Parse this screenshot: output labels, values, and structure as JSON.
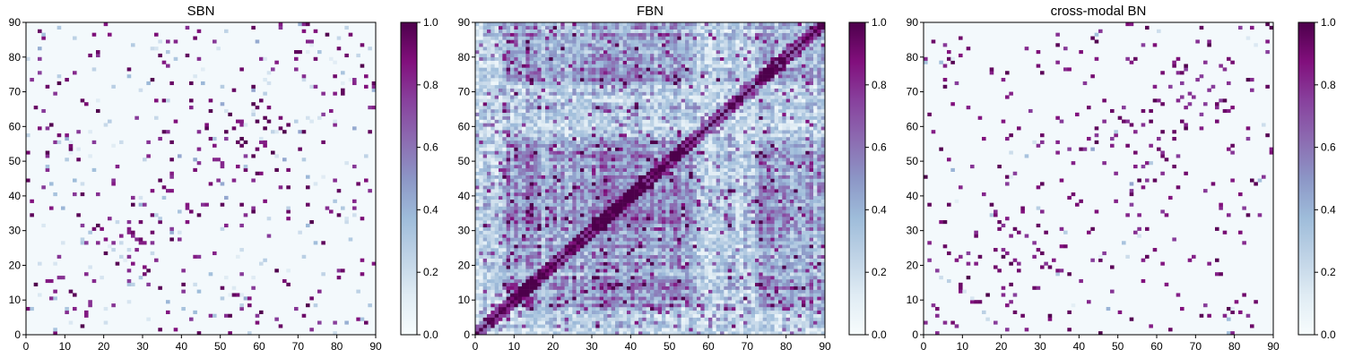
{
  "chart_data": [
    {
      "type": "heatmap",
      "title": "SBN",
      "x_range": [
        0,
        90
      ],
      "y_range": [
        0,
        90
      ],
      "x_ticks": [
        "0",
        "10",
        "20",
        "30",
        "40",
        "50",
        "60",
        "70",
        "80",
        "90"
      ],
      "y_ticks": [
        "0",
        "10",
        "20",
        "30",
        "40",
        "50",
        "60",
        "70",
        "80",
        "90"
      ],
      "grid_size": 90,
      "colormap": "BuPu",
      "colorbar": {
        "range": [
          0.0,
          1.0
        ],
        "ticks": [
          "0.0",
          "0.2",
          "0.4",
          "0.6",
          "0.8",
          "1.0"
        ]
      },
      "pattern": "sparse symmetric connectivity matrix, mostly near zero with scattered strong entries",
      "density": 0.05,
      "strong_fraction": 0.62
    },
    {
      "type": "heatmap",
      "title": "FBN",
      "x_range": [
        0,
        90
      ],
      "y_range": [
        0,
        90
      ],
      "x_ticks": [
        "0",
        "10",
        "20",
        "30",
        "40",
        "50",
        "60",
        "70",
        "80",
        "90"
      ],
      "y_ticks": [
        "0",
        "10",
        "20",
        "30",
        "40",
        "50",
        "60",
        "70",
        "80",
        "90"
      ],
      "grid_size": 90,
      "colormap": "BuPu",
      "colorbar": {
        "range": [
          0.0,
          1.0
        ],
        "ticks": [
          "0.0",
          "0.2",
          "0.4",
          "0.6",
          "0.8",
          "1.0"
        ]
      },
      "pattern": "dense symmetric connectivity matrix with block structure and strong diagonal band",
      "density": 1.0,
      "strong_fraction": 0.25
    },
    {
      "type": "heatmap",
      "title": "cross-modal BN",
      "x_range": [
        0,
        90
      ],
      "y_range": [
        0,
        90
      ],
      "x_ticks": [
        "0",
        "10",
        "20",
        "30",
        "40",
        "50",
        "60",
        "70",
        "80",
        "90"
      ],
      "y_ticks": [
        "0",
        "10",
        "20",
        "30",
        "40",
        "50",
        "60",
        "70",
        "80",
        "90"
      ],
      "grid_size": 90,
      "colormap": "BuPu",
      "colorbar": {
        "range": [
          0.0,
          1.0
        ],
        "ticks": [
          "0.0",
          "0.2",
          "0.4",
          "0.6",
          "0.8",
          "1.0"
        ]
      },
      "pattern": "sparse symmetric connectivity matrix, mostly zero with scattered strong entries",
      "density": 0.035,
      "strong_fraction": 0.88
    }
  ]
}
